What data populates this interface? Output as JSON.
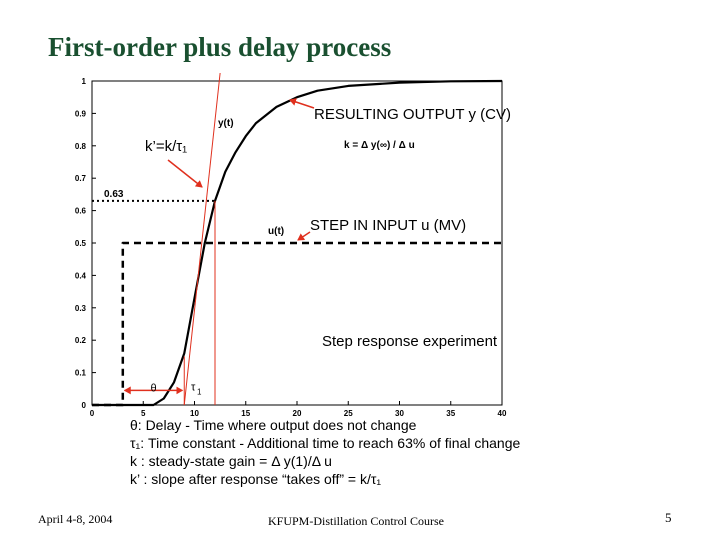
{
  "slide": {
    "title": "First-order plus delay process",
    "annotations": {
      "output_label": "RESULTING OUTPUT y (CV)",
      "slope_label": "k’=k/τ₁",
      "input_label": "STEP IN INPUT u (MV)",
      "experiment_label": "Step response experiment"
    },
    "definitions": [
      "θ: Delay - Time where output does not change",
      "τ₁: Time constant - Additional time to reach 63% of final change",
      "k : steady-state gain = Δ y(1)/Δ u",
      "k’ : slope after response “takes off” = k/τ₁"
    ],
    "footer": {
      "date": "April 4-8, 2004",
      "course": "KFUPM-Distillation Control Course",
      "page": "5"
    }
  },
  "chart_data": {
    "type": "line",
    "title": "",
    "xlabel": "",
    "ylabel": "",
    "xlim": [
      0,
      40
    ],
    "ylim": [
      0,
      1
    ],
    "x_ticks": [
      0,
      5,
      10,
      15,
      20,
      25,
      30,
      35,
      40
    ],
    "y_ticks": [
      0,
      0.1,
      0.2,
      0.3,
      0.4,
      0.5,
      0.6,
      0.7,
      0.8,
      0.9,
      1
    ],
    "grid": false,
    "legend": "none",
    "series": [
      {
        "name": "y(t)",
        "style": "solid",
        "color": "#000000",
        "x": [
          0,
          3,
          6,
          7,
          8,
          9,
          10,
          11,
          12,
          13,
          14,
          15,
          16,
          18,
          20,
          22,
          25,
          30,
          35,
          40
        ],
        "y": [
          0,
          0,
          0,
          0.02,
          0.07,
          0.16,
          0.33,
          0.5,
          0.63,
          0.72,
          0.78,
          0.83,
          0.87,
          0.92,
          0.95,
          0.97,
          0.985,
          0.995,
          0.999,
          1.0
        ]
      },
      {
        "name": "u(t)",
        "style": "dashed",
        "color": "#000000",
        "x": [
          0,
          3,
          3,
          40
        ],
        "y": [
          0,
          0,
          0.5,
          0.5
        ]
      }
    ],
    "annotations": {
      "output_curve_label": "y(t)",
      "input_curve_label": "u(t)",
      "gain_formula": "k = Δ y(∞) / Δ u",
      "level_label": "0.63",
      "level_value": 0.63,
      "theta_label": "θ",
      "tau_label": "τ1",
      "delay_start": 3,
      "delay_end": 9,
      "tau_end": 12,
      "tangent": {
        "x": [
          9,
          12.5
        ],
        "y": [
          0,
          1
        ]
      }
    }
  }
}
